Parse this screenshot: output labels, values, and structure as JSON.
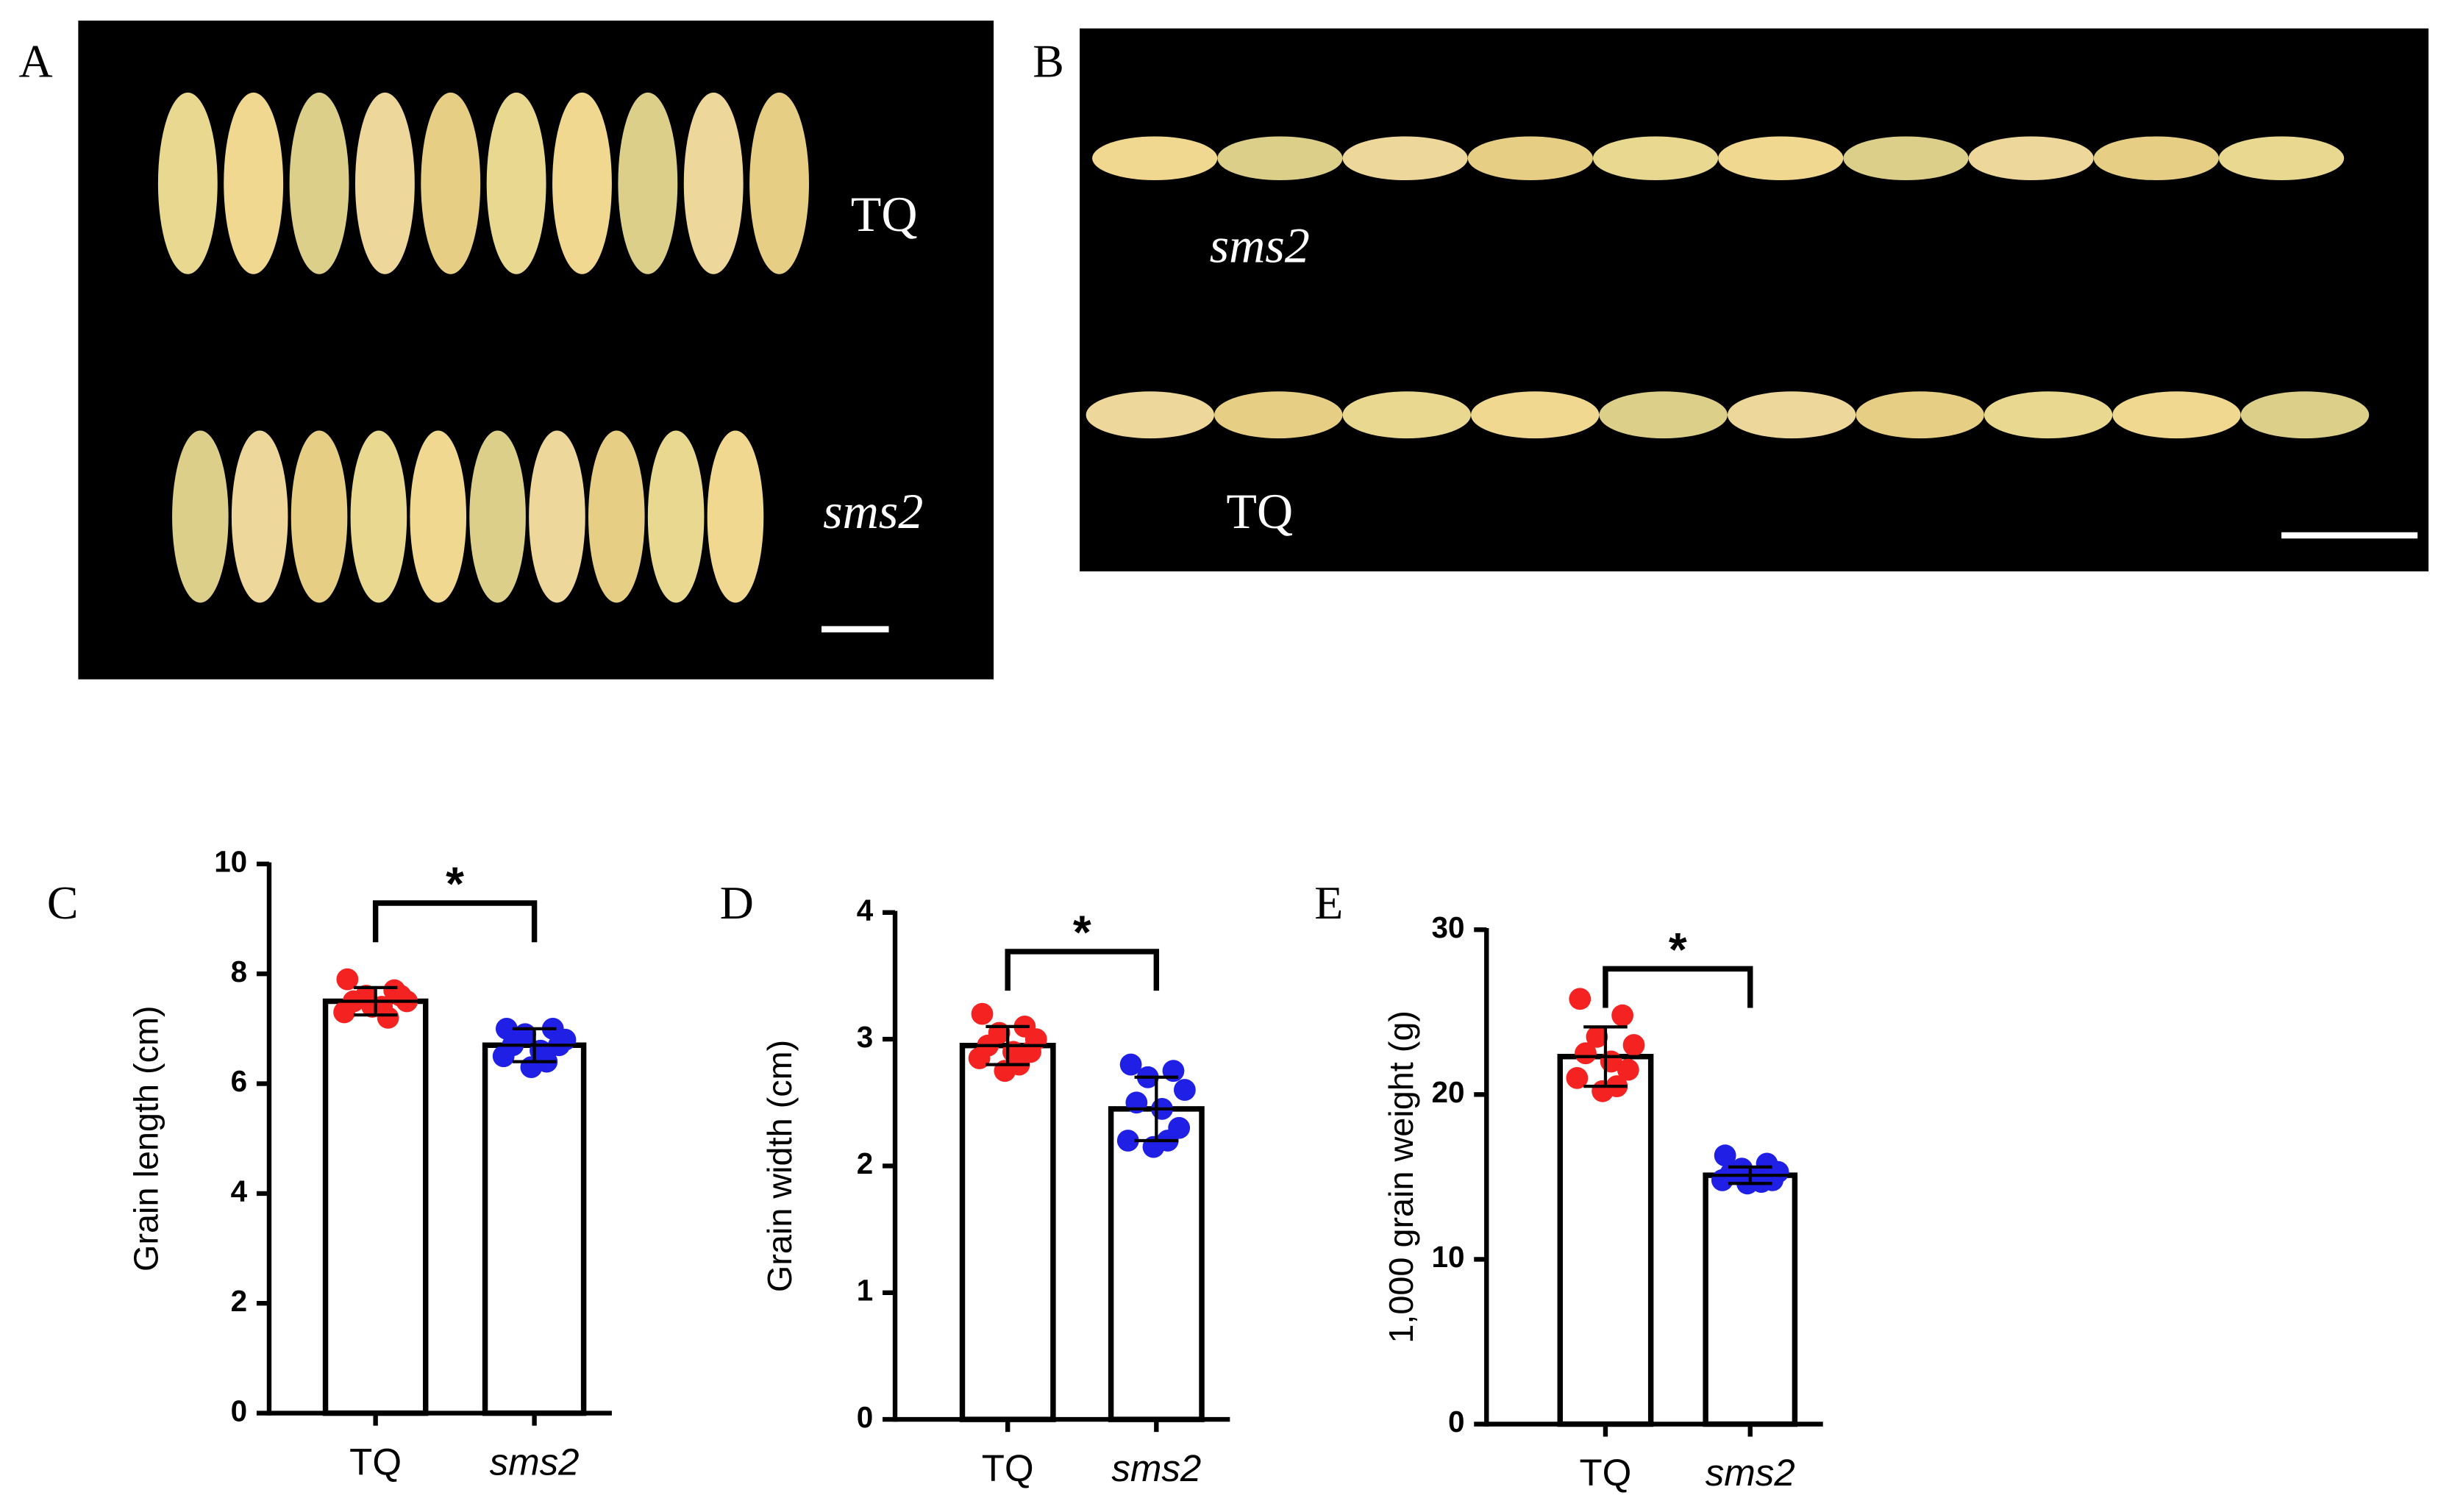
{
  "panels": [
    {
      "letter": "A",
      "labels": [
        "TQ",
        "sms2"
      ]
    },
    {
      "letter": "B",
      "labels": [
        "sms2",
        "TQ"
      ]
    }
  ],
  "chart_data": [
    {
      "type": "bar",
      "panel": "C",
      "y_label": "Grain length (cm)",
      "categories": [
        "TQ",
        "sms2"
      ],
      "values": [
        7.5,
        6.7
      ],
      "errors": [
        0.25,
        0.3
      ],
      "points": [
        [
          7.9,
          7.7,
          7.6,
          7.5,
          7.5,
          7.4,
          7.6,
          7.3,
          7.2,
          7.4
        ],
        [
          7.0,
          7.0,
          6.9,
          6.8,
          6.7,
          6.6,
          6.7,
          6.5,
          6.4,
          6.3
        ]
      ],
      "colors": [
        "#f52222",
        "#1f1fe6"
      ],
      "significance": "*",
      "ylim": [
        0,
        10
      ],
      "yticks": [
        0,
        2,
        4,
        6,
        8,
        10
      ]
    },
    {
      "type": "bar",
      "panel": "D",
      "y_label": "Grain width (cm)",
      "categories": [
        "TQ",
        "sms2"
      ],
      "values": [
        2.95,
        2.45
      ],
      "errors": [
        0.15,
        0.25
      ],
      "points": [
        [
          3.2,
          3.1,
          3.05,
          3.0,
          2.95,
          2.9,
          2.9,
          2.85,
          2.8,
          2.75
        ],
        [
          2.8,
          2.75,
          2.7,
          2.6,
          2.5,
          2.45,
          2.3,
          2.2,
          2.2,
          2.15
        ]
      ],
      "colors": [
        "#f52222",
        "#1f1fe6"
      ],
      "significance": "*",
      "ylim": [
        0,
        4
      ],
      "yticks": [
        0,
        1,
        2,
        3,
        4
      ]
    },
    {
      "type": "bar",
      "panel": "E",
      "y_label": "1,000 grain weight (g)",
      "categories": [
        "TQ",
        "sms2"
      ],
      "values": [
        22.3,
        15.1
      ],
      "errors": [
        1.8,
        0.5
      ],
      "points": [
        [
          25.8,
          24.8,
          23.5,
          23.0,
          22.5,
          22.0,
          21.5,
          21.0,
          20.5,
          20.2
        ],
        [
          16.3,
          15.8,
          15.5,
          15.3,
          15.2,
          15.0,
          14.8,
          14.8,
          14.7,
          14.6
        ]
      ],
      "colors": [
        "#f52222",
        "#1f1fe6"
      ],
      "significance": "*",
      "ylim": [
        0,
        30
      ],
      "yticks": [
        0,
        10,
        20,
        30
      ]
    }
  ]
}
